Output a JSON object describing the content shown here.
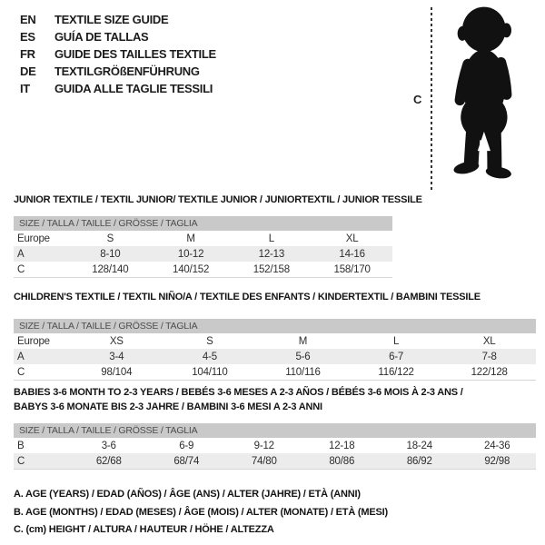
{
  "languages": [
    {
      "code": "EN",
      "title": "TEXTILE SIZE GUIDE"
    },
    {
      "code": "ES",
      "title": "GUÍA DE TALLAS"
    },
    {
      "code": "FR",
      "title": "GUIDE DES TAILLES TEXTILE"
    },
    {
      "code": "DE",
      "title": "TEXTILGRÖßENFÜHRUNG"
    },
    {
      "code": "IT",
      "title": "GUIDA ALLE TAGLIE TESSILI"
    }
  ],
  "figure": {
    "icon": "toddler-silhouette",
    "height_label": "C"
  },
  "tables": [
    {
      "title_lines": [
        "JUNIOR TEXTILE / TEXTIL JUNIOR/ TEXTILE JUNIOR / JUNIORTEXTIL / JUNIOR TESSILE"
      ],
      "header": "SIZE / TALLA / TAILLE / GRÖSSE / TAGLIA",
      "rows": [
        {
          "label": "Europe",
          "values": [
            "S",
            "M",
            "L",
            "XL"
          ]
        },
        {
          "label": "A",
          "values": [
            "8-10",
            "10-12",
            "12-13",
            "14-16"
          ]
        },
        {
          "label": "C",
          "values": [
            "128/140",
            "140/152",
            "152/158",
            "158/170"
          ]
        }
      ]
    },
    {
      "title_lines": [
        "CHILDREN'S TEXTILE / TEXTIL NIÑO/A / TEXTILE DES ENFANTS / KINDERTEXTIL / BAMBINI TESSILE"
      ],
      "header": "SIZE / TALLA / TAILLE / GRÖSSE / TAGLIA",
      "rows": [
        {
          "label": "Europe",
          "values": [
            "XS",
            "S",
            "M",
            "L",
            "XL"
          ]
        },
        {
          "label": "A",
          "values": [
            "3-4",
            "4-5",
            "5-6",
            "6-7",
            "7-8"
          ]
        },
        {
          "label": "C",
          "values": [
            "98/104",
            "104/110",
            "110/116",
            "116/122",
            "122/128"
          ]
        }
      ]
    },
    {
      "title_lines": [
        "BABIES 3-6 MONTH TO 2-3 YEARS / BEBÉS 3-6 MESES A 2-3 AÑOS / BÉBÉS 3-6 MOIS À 2-3 ANS /",
        "BABYS 3-6 MONATE BIS 2-3 JAHRE / BAMBINI 3-6 MESI A 2-3 ANNI"
      ],
      "header": "SIZE / TALLA / TAILLE / GRÖSSE / TAGLIA",
      "rows": [
        {
          "label": "B",
          "values": [
            "3-6",
            "6-9",
            "9-12",
            "12-18",
            "18-24",
            "24-36"
          ]
        },
        {
          "label": "C",
          "values": [
            "62/68",
            "68/74",
            "74/80",
            "80/86",
            "86/92",
            "92/98"
          ]
        }
      ]
    }
  ],
  "legend": [
    "A. AGE (YEARS) / EDAD (AÑOS) / ÂGE (ANS) / ALTER (JAHRE) / ETÀ (ANNI)",
    "B. AGE (MONTHS) / EDAD (MESES) / ÂGE (MOIS) / ALTER (MONATE) / ETÀ (MESI)",
    "C. (cm) HEIGHT / ALTURA / HAUTEUR / HÖHE / ALTEZZA"
  ],
  "colors": {
    "table_header_bg": "#c9c9c9",
    "table_header_text": "#4d4d4d",
    "table_row_alt_bg": "#ececec",
    "body_text": "#2e2e2e",
    "title_text": "#141414",
    "silhouette": "#111111"
  }
}
